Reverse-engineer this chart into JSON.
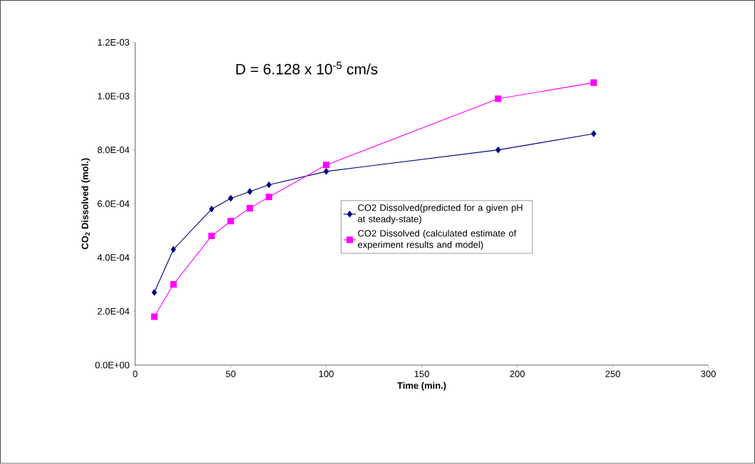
{
  "chart_data": {
    "type": "line",
    "xlabel": "Time (min.)",
    "ylabel": "CO$_{2}$ Dissolved (mol.)",
    "annotations": [
      "D = 6.128 x 10$^{-5}$ cm/s"
    ],
    "x": [
      10,
      20,
      40,
      50,
      60,
      70,
      100,
      190,
      240
    ],
    "series": [
      {
        "name": "CO2 Dissolved(predicted for a given pH at steady-state)",
        "color": "#000080",
        "marker": "diamond",
        "values": [
          0.00027,
          0.00043,
          0.00058,
          0.00062,
          0.000645,
          0.00067,
          0.00072,
          0.0008,
          0.00086
        ]
      },
      {
        "name": "CO2 Dissolved (calculated estimate of experiment results and model)",
        "color": "#ff00ff",
        "marker": "square",
        "values": [
          0.00018,
          0.0003,
          0.00048,
          0.000535,
          0.000583,
          0.000625,
          0.000744,
          0.00099,
          0.00105
        ]
      }
    ],
    "xlim": [
      0,
      300
    ],
    "xticks": [
      0,
      50,
      100,
      150,
      200,
      250,
      300
    ],
    "ylim": [
      0,
      0.0012
    ],
    "yticks": [
      {
        "value": 0,
        "label": "0.0E+00"
      },
      {
        "value": 0.0002,
        "label": "2.0E-04"
      },
      {
        "value": 0.0004,
        "label": "4.0E-04"
      },
      {
        "value": 0.0006,
        "label": "6.0E-04"
      },
      {
        "value": 0.0008,
        "label": "8.0E-04"
      },
      {
        "value": 0.001,
        "label": "1.0E-03"
      },
      {
        "value": 0.0012,
        "label": "1.2E-03"
      }
    ],
    "grid": false,
    "legend": "right",
    "line_style": "solid"
  }
}
